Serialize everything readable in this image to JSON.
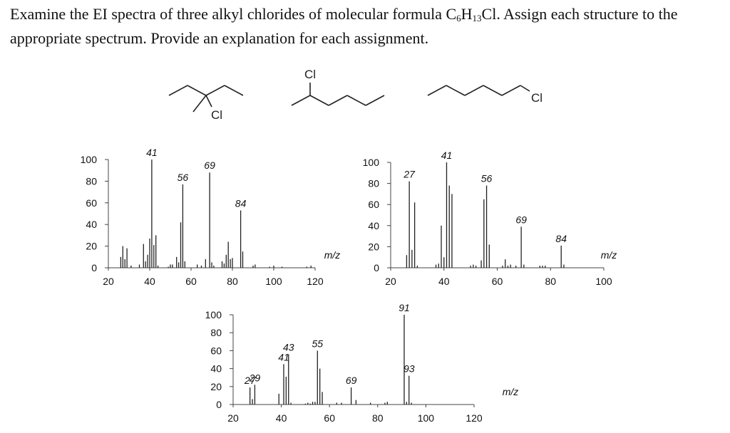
{
  "question": {
    "part1": "Examine the EI spectra of three alkyl chlorides of molecular formula C",
    "sub6": "6",
    "part2": "H",
    "sub13": "13",
    "part3": "Cl.  Assign each structure to the appropriate spectrum.  Provide an explanation for each assignment."
  },
  "structures": [
    {
      "atom_label": "Cl"
    },
    {
      "atom_label": "Cl"
    },
    {
      "atom_label": "Cl"
    }
  ],
  "chart_data": [
    {
      "type": "bar",
      "xlabel": "m/z",
      "xlim": [
        20,
        120
      ],
      "ylim": [
        0,
        100
      ],
      "x_ticks": [
        20,
        40,
        60,
        80,
        100,
        120
      ],
      "y_ticks": [
        0,
        20,
        40,
        60,
        80,
        100
      ],
      "peaks": [
        [
          26,
          10
        ],
        [
          27,
          20
        ],
        [
          28,
          8
        ],
        [
          29,
          18
        ],
        [
          31,
          2
        ],
        [
          35,
          3
        ],
        [
          37,
          22
        ],
        [
          38,
          6
        ],
        [
          39,
          12
        ],
        [
          40,
          27
        ],
        [
          41,
          100
        ],
        [
          42,
          21
        ],
        [
          43,
          30
        ],
        [
          44,
          2
        ],
        [
          49,
          1
        ],
        [
          50,
          3
        ],
        [
          51,
          3
        ],
        [
          53,
          10
        ],
        [
          54,
          5
        ],
        [
          55,
          42
        ],
        [
          56,
          77
        ],
        [
          57,
          6
        ],
        [
          63,
          3
        ],
        [
          65,
          2
        ],
        [
          67,
          8
        ],
        [
          69,
          88
        ],
        [
          70,
          5
        ],
        [
          71,
          2
        ],
        [
          75,
          6
        ],
        [
          76,
          4
        ],
        [
          77,
          12
        ],
        [
          78,
          24
        ],
        [
          79,
          8
        ],
        [
          80,
          9
        ],
        [
          84,
          53
        ],
        [
          85,
          15
        ],
        [
          90,
          2
        ],
        [
          91,
          3
        ],
        [
          98,
          1
        ],
        [
          100,
          2
        ],
        [
          104,
          1
        ],
        [
          116,
          1
        ],
        [
          118,
          2
        ]
      ],
      "labels": [
        {
          "text": "41",
          "x": 41,
          "y": 100
        },
        {
          "text": "56",
          "x": 56,
          "y": 77
        },
        {
          "text": "69",
          "x": 69,
          "y": 88
        },
        {
          "text": "84",
          "x": 84,
          "y": 53
        }
      ]
    },
    {
      "type": "bar",
      "xlabel": "m/z",
      "xlim": [
        20,
        100
      ],
      "ylim": [
        0,
        100
      ],
      "x_ticks": [
        20,
        40,
        60,
        80,
        100
      ],
      "y_ticks": [
        0,
        20,
        40,
        60,
        80,
        100
      ],
      "peaks": [
        [
          26,
          12
        ],
        [
          27,
          82
        ],
        [
          28,
          17
        ],
        [
          29,
          62
        ],
        [
          30,
          2
        ],
        [
          37,
          3
        ],
        [
          38,
          4
        ],
        [
          39,
          40
        ],
        [
          40,
          10
        ],
        [
          41,
          100
        ],
        [
          42,
          78
        ],
        [
          43,
          70
        ],
        [
          50,
          2
        ],
        [
          51,
          3
        ],
        [
          52,
          2
        ],
        [
          54,
          7
        ],
        [
          55,
          65
        ],
        [
          56,
          78
        ],
        [
          57,
          22
        ],
        [
          62,
          2
        ],
        [
          63,
          8
        ],
        [
          64,
          2
        ],
        [
          65,
          3
        ],
        [
          67,
          2
        ],
        [
          69,
          39
        ],
        [
          70,
          3
        ],
        [
          76,
          2
        ],
        [
          77,
          2
        ],
        [
          78,
          2
        ],
        [
          84,
          21
        ],
        [
          85,
          3
        ]
      ],
      "labels": [
        {
          "text": "27",
          "x": 27,
          "y": 82
        },
        {
          "text": "41",
          "x": 41,
          "y": 100
        },
        {
          "text": "56",
          "x": 56,
          "y": 78
        },
        {
          "text": "69",
          "x": 69,
          "y": 39
        },
        {
          "text": "84",
          "x": 84,
          "y": 21
        }
      ]
    },
    {
      "type": "bar",
      "xlabel": "m/z",
      "xlim": [
        20,
        120
      ],
      "ylim": [
        0,
        100
      ],
      "x_ticks": [
        20,
        40,
        60,
        80,
        100,
        120
      ],
      "y_ticks": [
        0,
        20,
        40,
        60,
        80,
        100
      ],
      "peaks": [
        [
          27,
          19
        ],
        [
          28,
          6
        ],
        [
          29,
          22
        ],
        [
          39,
          12
        ],
        [
          41,
          45
        ],
        [
          42,
          31
        ],
        [
          43,
          56
        ],
        [
          44,
          2
        ],
        [
          50,
          1
        ],
        [
          51,
          2
        ],
        [
          52,
          1
        ],
        [
          53,
          3
        ],
        [
          54,
          3
        ],
        [
          55,
          60
        ],
        [
          56,
          40
        ],
        [
          57,
          14
        ],
        [
          63,
          2
        ],
        [
          65,
          2
        ],
        [
          69,
          19
        ],
        [
          71,
          5
        ],
        [
          77,
          2
        ],
        [
          83,
          2
        ],
        [
          84,
          3
        ],
        [
          91,
          100
        ],
        [
          92,
          3
        ],
        [
          93,
          32
        ],
        [
          94,
          2
        ]
      ],
      "labels": [
        {
          "text": "27",
          "x": 27,
          "y": 19
        },
        {
          "text": "29",
          "x": 29,
          "y": 22
        },
        {
          "text": "41",
          "x": 41,
          "y": 45
        },
        {
          "text": "43",
          "x": 43,
          "y": 56
        },
        {
          "text": "55",
          "x": 55,
          "y": 60
        },
        {
          "text": "69",
          "x": 69,
          "y": 19
        },
        {
          "text": "91",
          "x": 91,
          "y": 100
        },
        {
          "text": "93",
          "x": 93,
          "y": 32
        }
      ]
    }
  ]
}
